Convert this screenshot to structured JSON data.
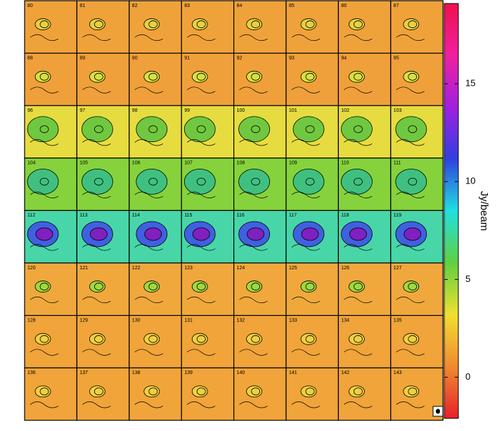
{
  "chart_data": {
    "type": "channel-map",
    "categories": [
      "80",
      "81",
      "82",
      "83",
      "84",
      "85",
      "86",
      "87",
      "88",
      "89",
      "90",
      "91",
      "92",
      "93",
      "94",
      "95",
      "96",
      "97",
      "98",
      "99",
      "100",
      "101",
      "102",
      "103",
      "104",
      "105",
      "106",
      "107",
      "108",
      "109",
      "110",
      "111",
      "112",
      "113",
      "114",
      "115",
      "116",
      "117",
      "118",
      "119",
      "120",
      "121",
      "122",
      "123",
      "124",
      "125",
      "126",
      "127",
      "128",
      "129",
      "130",
      "131",
      "132",
      "133",
      "134",
      "135",
      "136",
      "137",
      "138",
      "139",
      "140",
      "141",
      "142",
      "143"
    ],
    "colorbar_label": "Jy/beam",
    "ylim": [
      -2.1,
      19.1
    ],
    "yticks": [
      0,
      5,
      10,
      15
    ],
    "colormap": [
      "#e8202a",
      "#f08a30",
      "#f0e030",
      "#60d040",
      "#20e0e0",
      "#3040e0",
      "#a020e0",
      "#f020a0",
      "#f01050"
    ]
  }
}
